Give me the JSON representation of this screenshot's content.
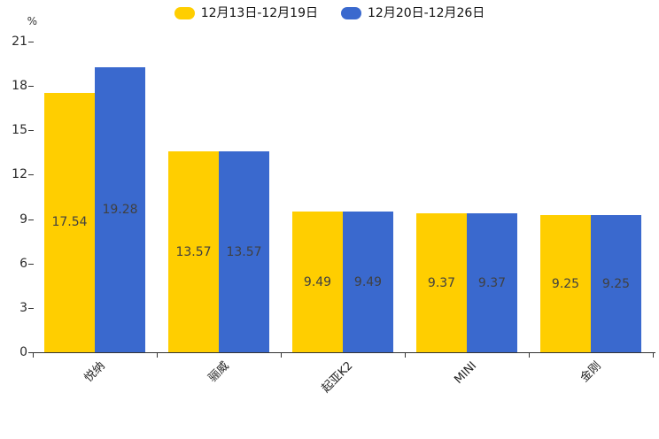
{
  "chart_data": {
    "type": "bar",
    "title": "",
    "categories": [
      "悦纳",
      "骊威",
      "起亚K2",
      "MINI",
      "金刚"
    ],
    "series": [
      {
        "name": "12月13日-12月19日",
        "color": "#FFCE00",
        "values": [
          17.54,
          13.57,
          9.49,
          9.37,
          9.25
        ]
      },
      {
        "name": "12月20日-12月26日",
        "color": "#3A69CE",
        "values": [
          19.28,
          13.57,
          9.49,
          9.37,
          9.25
        ]
      }
    ],
    "value_labels": [
      "17.54",
      "19.28",
      "13.57",
      "13.57",
      "9.49",
      "9.49",
      "9.37",
      "9.37",
      "9.25",
      "9.25"
    ],
    "xlabel": "",
    "ylabel": "%",
    "ylim": [
      0,
      21
    ],
    "y_ticks": [
      "0",
      "3",
      "6",
      "9",
      "12",
      "15",
      "18",
      "21"
    ],
    "grid": false,
    "legend_position": "top",
    "value_label_color": "#404040",
    "axis_color": "#333333",
    "background_color": "#ffffff"
  }
}
